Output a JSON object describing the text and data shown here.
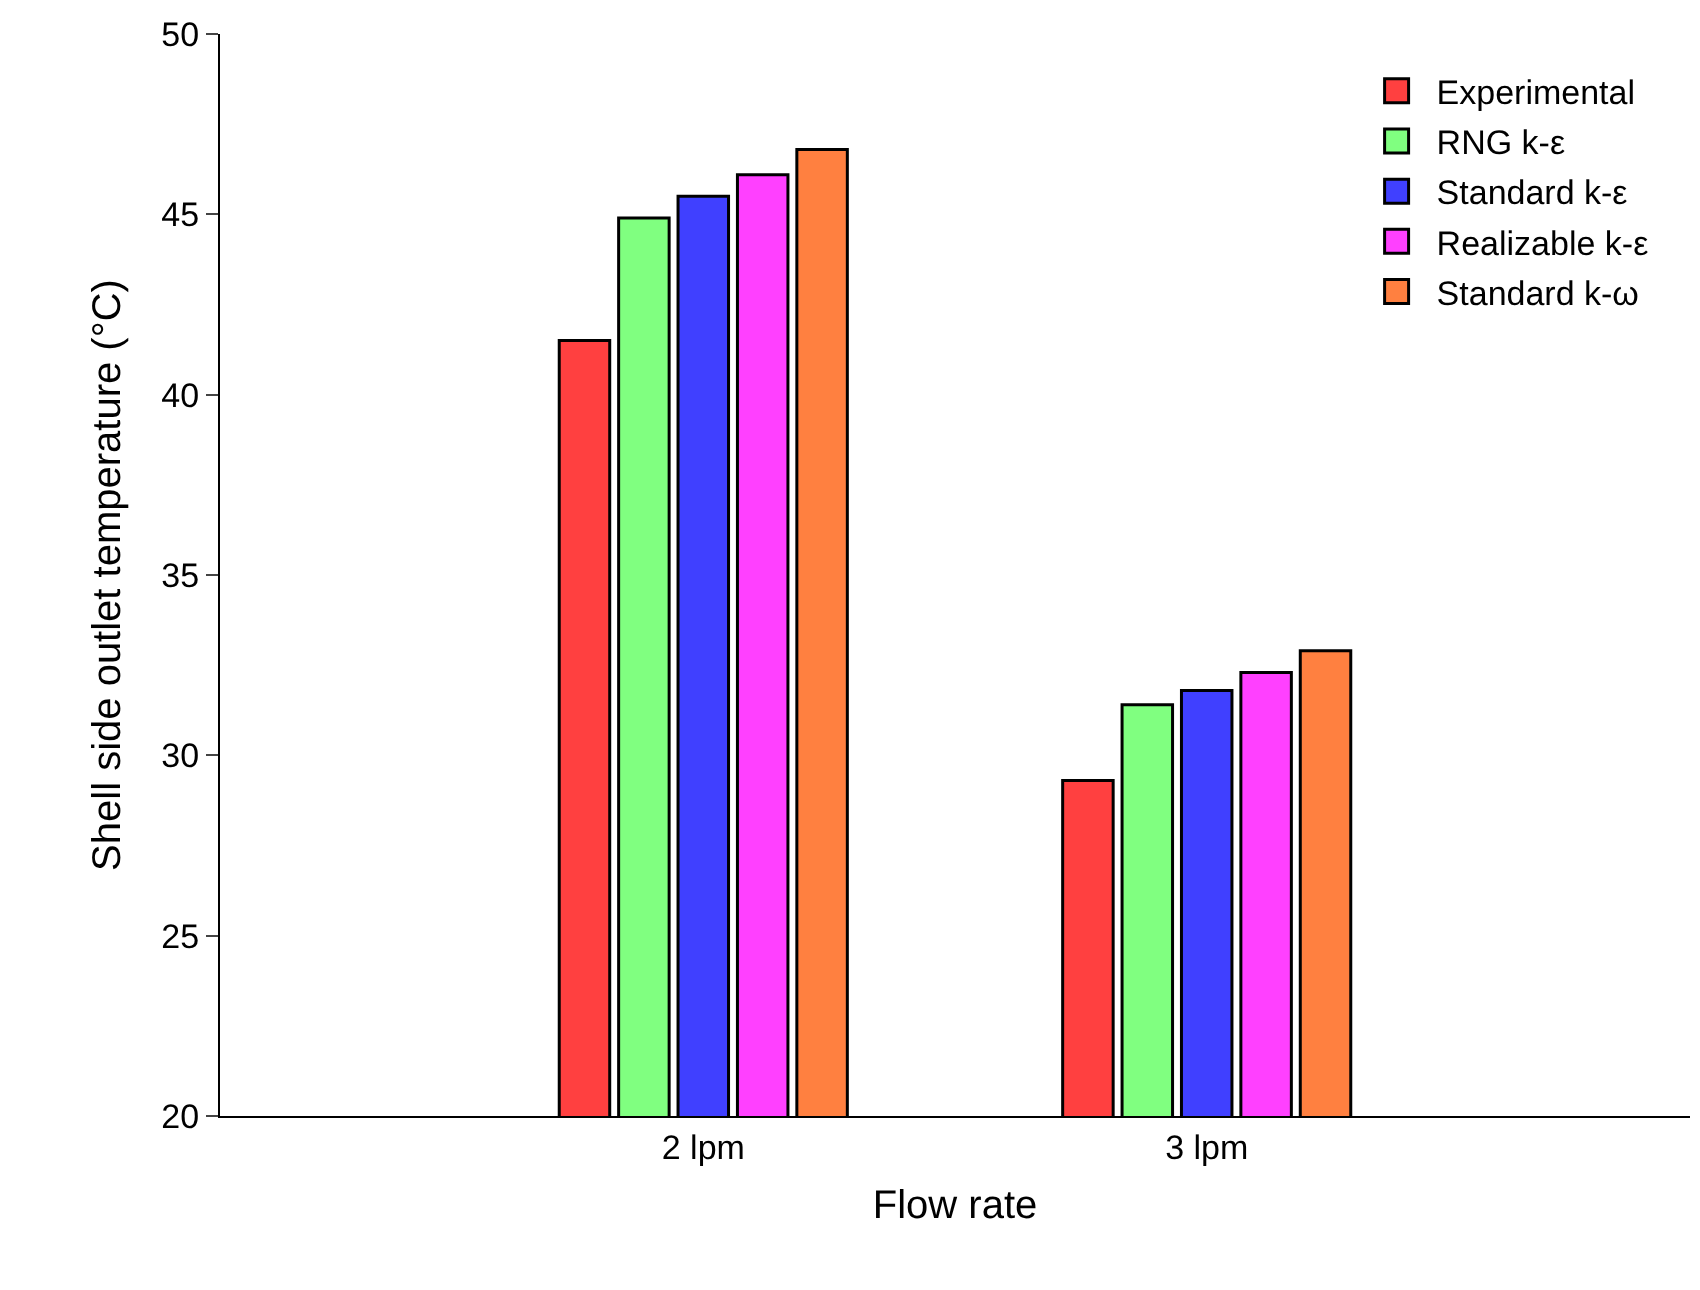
{
  "chart_data": {
    "type": "bar",
    "xlabel": "Flow rate",
    "ylabel": "Shell side outlet temperature (°C)",
    "categories": [
      "2 lpm",
      "3 lpm"
    ],
    "series": [
      {
        "name": "Experimental",
        "color": "#ff4040",
        "values": [
          41.5,
          29.3
        ]
      },
      {
        "name": "RNG k-ε",
        "color": "#80ff80",
        "values": [
          44.9,
          31.4
        ]
      },
      {
        "name": "Standard k-ε",
        "color": "#4040ff",
        "values": [
          45.5,
          31.8
        ]
      },
      {
        "name": "Realizable k-ε",
        "color": "#ff40ff",
        "values": [
          46.1,
          32.3
        ]
      },
      {
        "name": "Standard k-ω",
        "color": "#ff8040",
        "values": [
          46.8,
          32.9
        ]
      }
    ],
    "ylim": [
      20,
      50
    ],
    "yticks": [
      20,
      25,
      30,
      35,
      40,
      45,
      50
    ],
    "grid": false,
    "legend": "top right"
  }
}
